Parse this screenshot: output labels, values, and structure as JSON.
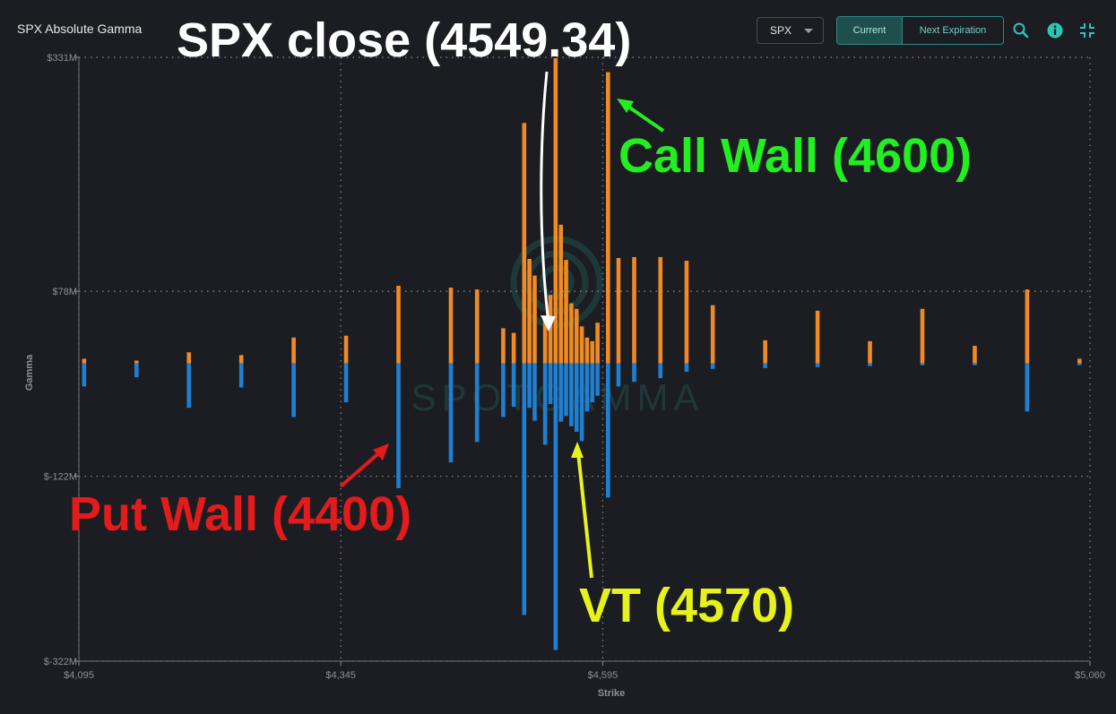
{
  "header": {
    "title": "SPX Absolute Gamma",
    "symbol_select": "SPX",
    "tabs": [
      {
        "label": "Current",
        "active": true
      },
      {
        "label": "Next Expiration",
        "active": false
      }
    ],
    "icons": [
      "search-icon",
      "info-icon",
      "collapse-icon"
    ]
  },
  "colors": {
    "calls": "#f08a24",
    "puts": "#1f7fd1",
    "accent": "#2ec4b6",
    "put_wall": "#e31b1b",
    "call_wall": "#22ee22",
    "vt": "#e6f21c",
    "close": "#ffffff"
  },
  "watermark": "SPOTGAMMA",
  "annotations": {
    "close": "SPX close (4549.34)",
    "call_wall": "Call Wall (4600)",
    "put_wall": "Put Wall (4400)",
    "vt": "VT (4570)"
  },
  "chart_data": {
    "type": "bar",
    "xlabel": "Strike",
    "ylabel": "Gamma",
    "xlim": [
      4095,
      5060
    ],
    "ylim": [
      -322,
      331
    ],
    "x_ticks": [
      "$4,095",
      "$4,345",
      "$4,595",
      "$5,060"
    ],
    "x_tick_values": [
      4095,
      4345,
      4595,
      5060
    ],
    "y_ticks": [
      "$331M",
      "$78M",
      "$-122M",
      "$-322M"
    ],
    "y_tick_values": [
      331,
      78,
      -122,
      -322
    ],
    "grid": true,
    "series": [
      {
        "name": "Calls",
        "x": [
          4100,
          4150,
          4200,
          4250,
          4300,
          4350,
          4400,
          4450,
          4475,
          4500,
          4510,
          4520,
          4525,
          4530,
          4540,
          4545,
          4550,
          4555,
          4560,
          4565,
          4570,
          4575,
          4580,
          4585,
          4590,
          4600,
          4610,
          4625,
          4650,
          4675,
          4700,
          4750,
          4800,
          4850,
          4900,
          4950,
          5000,
          5050
        ],
        "values": [
          5,
          3,
          12,
          9,
          28,
          30,
          84,
          82,
          80,
          38,
          33,
          260,
          113,
          95,
          48,
          74,
          330,
          150,
          112,
          65,
          59,
          40,
          28,
          24,
          44,
          315,
          114,
          115,
          115,
          111,
          63,
          25,
          57,
          24,
          59,
          19,
          80,
          5
        ]
      },
      {
        "name": "Puts",
        "x": [
          4100,
          4150,
          4200,
          4250,
          4300,
          4350,
          4400,
          4450,
          4475,
          4500,
          4510,
          4520,
          4525,
          4530,
          4540,
          4545,
          4550,
          4555,
          4560,
          4565,
          4570,
          4575,
          4580,
          4585,
          4590,
          4600,
          4610,
          4625,
          4650,
          4675,
          4700,
          4750,
          4800,
          4850,
          4900,
          4950,
          5000,
          5050
        ],
        "values": [
          -25,
          -15,
          -48,
          -26,
          -58,
          -42,
          -135,
          -107,
          -85,
          -58,
          -47,
          -272,
          -48,
          -62,
          -88,
          -44,
          -310,
          -63,
          -57,
          -68,
          -74,
          -84,
          -52,
          -42,
          -35,
          -145,
          -25,
          -20,
          -16,
          -9,
          -6,
          -5,
          -4,
          -3,
          -2,
          -2,
          -52,
          -2
        ]
      }
    ]
  }
}
